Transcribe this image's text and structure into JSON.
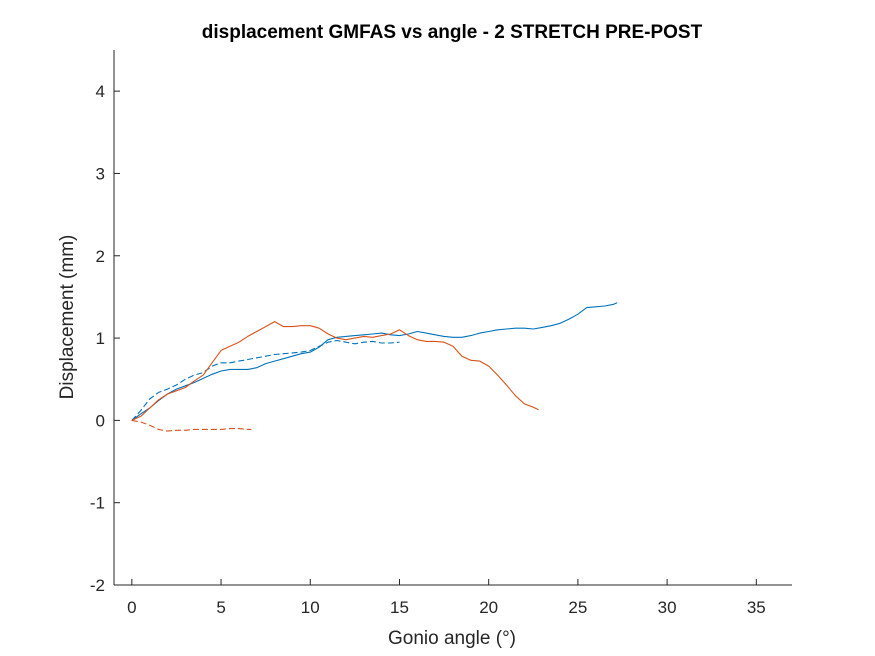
{
  "chart_data": {
    "type": "line",
    "title": "displacement GMFAS vs angle - 2 STRETCH PRE-POST",
    "xlabel": "Gonio angle (°)",
    "ylabel": "Displacement (mm)",
    "xlim": [
      -1,
      37
    ],
    "ylim": [
      -2,
      4.5
    ],
    "xticks": [
      0,
      5,
      10,
      15,
      20,
      25,
      30,
      35
    ],
    "yticks": [
      -2,
      -1,
      0,
      1,
      2,
      3,
      4
    ],
    "grid": false,
    "legend": "none",
    "series": [
      {
        "color": "#0072BD",
        "style": "solid",
        "x": [
          0,
          0.5,
          1,
          1.5,
          2,
          2.5,
          3,
          3.5,
          4,
          4.5,
          5,
          5.5,
          6,
          6.5,
          7,
          7.5,
          8,
          8.5,
          9,
          9.5,
          10,
          10.5,
          11,
          11.5,
          12,
          12.5,
          13,
          13.5,
          14,
          14.5,
          15,
          15.5,
          16,
          16.5,
          17,
          17.5,
          18,
          18.5,
          19,
          19.5,
          20,
          20.5,
          21,
          21.5,
          22,
          22.5,
          23,
          23.5,
          24,
          24.5,
          25,
          25.5,
          26,
          26.5,
          27,
          27.2
        ],
        "y": [
          0,
          0.08,
          0.15,
          0.24,
          0.32,
          0.38,
          0.42,
          0.46,
          0.51,
          0.56,
          0.6,
          0.62,
          0.62,
          0.62,
          0.64,
          0.69,
          0.72,
          0.75,
          0.78,
          0.81,
          0.83,
          0.89,
          0.98,
          1.01,
          1.02,
          1.03,
          1.04,
          1.05,
          1.06,
          1.04,
          1.03,
          1.05,
          1.08,
          1.06,
          1.04,
          1.02,
          1.01,
          1.01,
          1.03,
          1.06,
          1.08,
          1.1,
          1.11,
          1.12,
          1.12,
          1.11,
          1.13,
          1.15,
          1.18,
          1.23,
          1.29,
          1.37,
          1.38,
          1.39,
          1.41,
          1.43
        ]
      },
      {
        "color": "#0072BD",
        "style": "dashed",
        "x": [
          0,
          0.5,
          1,
          1.5,
          2,
          2.5,
          3,
          3.5,
          4,
          4.5,
          5,
          5.5,
          6,
          6.5,
          7,
          7.5,
          8,
          8.5,
          9,
          9.5,
          10,
          10.5,
          11,
          11.5,
          12,
          12.5,
          13,
          13.5,
          14,
          14.5,
          15
        ],
        "y": [
          0,
          0.12,
          0.26,
          0.34,
          0.38,
          0.43,
          0.5,
          0.55,
          0.58,
          0.66,
          0.7,
          0.7,
          0.72,
          0.74,
          0.76,
          0.78,
          0.8,
          0.81,
          0.82,
          0.83,
          0.85,
          0.9,
          0.95,
          0.97,
          0.95,
          0.93,
          0.95,
          0.96,
          0.94,
          0.94,
          0.95
        ]
      },
      {
        "color": "#D95319",
        "style": "solid",
        "x": [
          0,
          0.5,
          1,
          1.5,
          2,
          2.5,
          3,
          3.5,
          4,
          4.5,
          5,
          5.5,
          6,
          6.5,
          7,
          7.5,
          8,
          8.5,
          9,
          9.5,
          10,
          10.5,
          11,
          11.5,
          12,
          12.5,
          13,
          13.5,
          14,
          14.5,
          15,
          15.5,
          16,
          16.5,
          17,
          17.5,
          18,
          18.5,
          19,
          19.5,
          20,
          20.5,
          21,
          21.5,
          22,
          22.5,
          22.8
        ],
        "y": [
          0,
          0.05,
          0.15,
          0.25,
          0.32,
          0.36,
          0.4,
          0.48,
          0.55,
          0.7,
          0.85,
          0.9,
          0.95,
          1.02,
          1.08,
          1.14,
          1.2,
          1.14,
          1.14,
          1.15,
          1.15,
          1.12,
          1.05,
          1.0,
          0.98,
          1.0,
          1.02,
          1.01,
          1.03,
          1.05,
          1.1,
          1.03,
          0.98,
          0.96,
          0.96,
          0.95,
          0.9,
          0.78,
          0.73,
          0.72,
          0.66,
          0.55,
          0.43,
          0.3,
          0.2,
          0.16,
          0.13
        ]
      },
      {
        "color": "#D95319",
        "style": "dashed",
        "x": [
          0,
          0.5,
          1,
          1.5,
          2,
          2.5,
          3,
          3.5,
          4,
          4.5,
          5,
          5.5,
          6,
          6.5,
          6.7
        ],
        "y": [
          0,
          -0.02,
          -0.06,
          -0.11,
          -0.13,
          -0.12,
          -0.12,
          -0.11,
          -0.11,
          -0.11,
          -0.11,
          -0.1,
          -0.1,
          -0.11,
          -0.11
        ]
      }
    ]
  }
}
